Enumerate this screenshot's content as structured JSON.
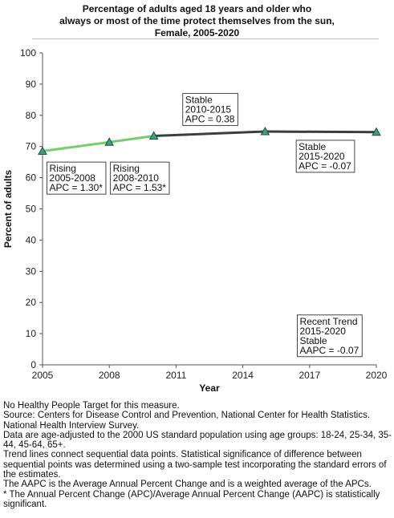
{
  "chart_data": {
    "type": "line",
    "title_lines": [
      "Percentage of adults aged 18 years and older who",
      "always or most of the time protect themselves from the sun,",
      "Female,  2005-2020"
    ],
    "xlabel": "Year",
    "ylabel": "Percent of adults",
    "xlim": [
      2005,
      2020
    ],
    "ylim": [
      0,
      100
    ],
    "xticks": [
      2005,
      2008,
      2011,
      2014,
      2017,
      2020
    ],
    "yticks": [
      0,
      10,
      20,
      30,
      40,
      50,
      60,
      70,
      80,
      90,
      100
    ],
    "grid": false,
    "points": [
      {
        "x": 2005,
        "y": 68.5
      },
      {
        "x": 2008,
        "y": 71.4
      },
      {
        "x": 2010,
        "y": 73.4
      },
      {
        "x": 2015,
        "y": 74.8
      },
      {
        "x": 2020,
        "y": 74.6
      }
    ],
    "segments": [
      {
        "x": [
          2005,
          2008
        ],
        "y": [
          68.5,
          71.4
        ],
        "trend": "rising",
        "color": "#74cf6a"
      },
      {
        "x": [
          2008,
          2010
        ],
        "y": [
          71.4,
          73.4
        ],
        "trend": "rising",
        "color": "#74cf6a"
      },
      {
        "x": [
          2010,
          2015
        ],
        "y": [
          73.4,
          74.8
        ],
        "trend": "stable",
        "color": "#3d3d3d"
      },
      {
        "x": [
          2015,
          2020
        ],
        "y": [
          74.8,
          74.6
        ],
        "trend": "stable",
        "color": "#3d3d3d"
      }
    ],
    "marker_color": "#3f9e84",
    "annotations": [
      {
        "name": "annotation-rising-2005-2008",
        "lines": [
          "Rising",
          "2005-2008",
          "APC =  1.30*"
        ],
        "x": 2005.2,
        "y": 65
      },
      {
        "name": "annotation-rising-2008-2010",
        "lines": [
          "Rising",
          "2008-2010",
          "APC =  1.53*"
        ],
        "x": 2008.05,
        "y": 65
      },
      {
        "name": "annotation-stable-2010-2015",
        "lines": [
          "Stable",
          "2010-2015",
          "APC =  0.38"
        ],
        "x": 2011.3,
        "y": 87
      },
      {
        "name": "annotation-stable-2015-2020",
        "lines": [
          "Stable",
          "2015-2020",
          "APC = -0.07"
        ],
        "x": 2016.4,
        "y": 72
      },
      {
        "name": "annotation-recent-trend",
        "lines": [
          "Recent Trend",
          "2015-2020",
          "Stable",
          "AAPC = -0.07"
        ],
        "x": 2016.45,
        "y": 16
      }
    ]
  },
  "notes": [
    "No Healthy People Target for this measure.",
    "Source: Centers for Disease Control and Prevention, National Center for Health Statistics. National Health Interview Survey.",
    "Data are age-adjusted to the 2000 US standard population using age groups: 18-24, 25-34, 35-44, 45-64, 65+.",
    "Trend lines connect sequential data points. Statistical significance of difference between sequential points was determined using a two-sample test incorporating the standard errors of the estimates.",
    "The AAPC is the Average Annual Percent Change and is a weighted average of the APCs.",
    "* The Annual Percent Change (APC)/Average Annual Percent Change (AAPC) is statistically significant."
  ]
}
